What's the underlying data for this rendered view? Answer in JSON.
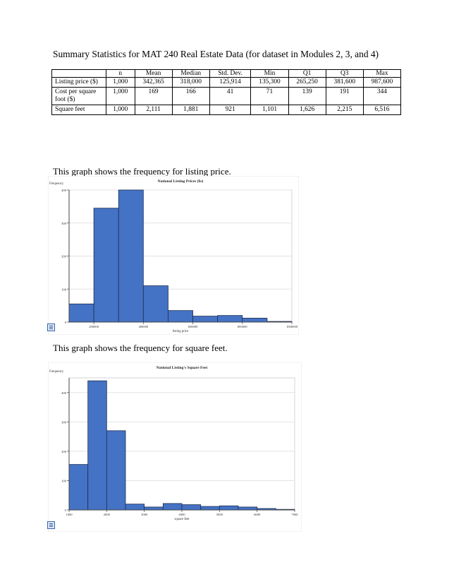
{
  "document": {
    "title": "Summary Statistics for MAT 240 Real Estate Data (for dataset in Modules 2, 3, and 4)"
  },
  "summary_table": {
    "columns": [
      "",
      "n",
      "Mean",
      "Median",
      "Std. Dev.",
      "Min",
      "Q1",
      "Q3",
      "Max"
    ],
    "rows": [
      {
        "label": "Listing price ($)",
        "values": [
          "1,000",
          "342,365",
          "318,000",
          "125,914",
          "135,300",
          "265,250",
          "381,600",
          "987,600"
        ]
      },
      {
        "label": "Cost per square foot ($)",
        "values": [
          "1,000",
          "169",
          "166",
          "41",
          "71",
          "139",
          "191",
          "344"
        ]
      },
      {
        "label": "Square feet",
        "values": [
          "1,000",
          "2,111",
          "1,881",
          "921",
          "1,101",
          "1,626",
          "2,215",
          "6,516"
        ]
      }
    ]
  },
  "captions": {
    "price": "This graph shows the frequency for listing price.",
    "sqft": "This graph shows the frequency for square  feet."
  },
  "chart_data": [
    {
      "type": "bar",
      "title": "National Listing Prices ($s)",
      "ylabel": "Frequency",
      "xlabel": "listing price",
      "xlim": [
        100000,
        1000000
      ],
      "ylim": [
        0,
        400
      ],
      "x_ticks": [
        "200000",
        "400000",
        "600000",
        "800000",
        "1000000"
      ],
      "y_ticks": [
        "0",
        "100",
        "200",
        "300",
        "400"
      ],
      "bin_edges": [
        100000,
        200000,
        300000,
        400000,
        500000,
        600000,
        700000,
        800000,
        900000,
        1000000
      ],
      "values": [
        55,
        345,
        400,
        110,
        35,
        18,
        20,
        12,
        2
      ],
      "bar_color": "#4472c4",
      "grid": true
    },
    {
      "type": "bar",
      "title": "National Listing's Square Feet",
      "ylabel": "Frequency",
      "xlabel": "square feet",
      "xlim": [
        1000,
        7000
      ],
      "ylim": [
        0,
        450
      ],
      "x_ticks": [
        "1000",
        "2000",
        "3000",
        "4000",
        "5000",
        "6000",
        "7000"
      ],
      "y_ticks": [
        "0",
        "100",
        "200",
        "300",
        "400"
      ],
      "bin_edges": [
        1000,
        1500,
        2000,
        2500,
        3000,
        3500,
        4000,
        4500,
        5000,
        5500,
        6000,
        6500,
        7000
      ],
      "values": [
        155,
        440,
        270,
        20,
        10,
        22,
        18,
        12,
        14,
        10,
        5,
        2
      ],
      "bar_color": "#4472c4",
      "grid": true
    }
  ]
}
